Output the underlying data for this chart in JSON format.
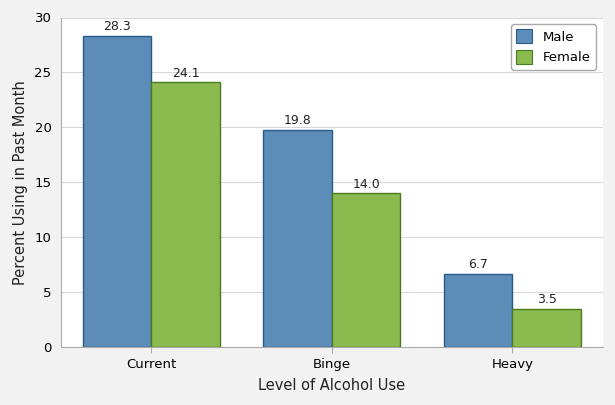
{
  "categories": [
    "Current",
    "Binge",
    "Heavy"
  ],
  "male_values": [
    28.3,
    19.8,
    6.7
  ],
  "female_values": [
    24.1,
    14.0,
    3.5
  ],
  "male_color": "#5B8DB8",
  "female_color": "#8BBB4E",
  "male_edge_color": "#2A5A8A",
  "female_edge_color": "#4A7A20",
  "male_label": "Male",
  "female_label": "Female",
  "xlabel": "Level of Alcohol Use",
  "ylabel": "Percent Using in Past Month",
  "ylim": [
    0,
    30
  ],
  "yticks": [
    0,
    5,
    10,
    15,
    20,
    25,
    30
  ],
  "bar_width": 0.38,
  "label_fontsize": 9,
  "tick_fontsize": 9.5,
  "axis_label_fontsize": 10.5,
  "legend_fontsize": 9.5,
  "background_color": "#f2f2f2",
  "plot_bg_color": "#ffffff",
  "grid_color": "#d8d8d8",
  "spine_color": "#aaaaaa"
}
